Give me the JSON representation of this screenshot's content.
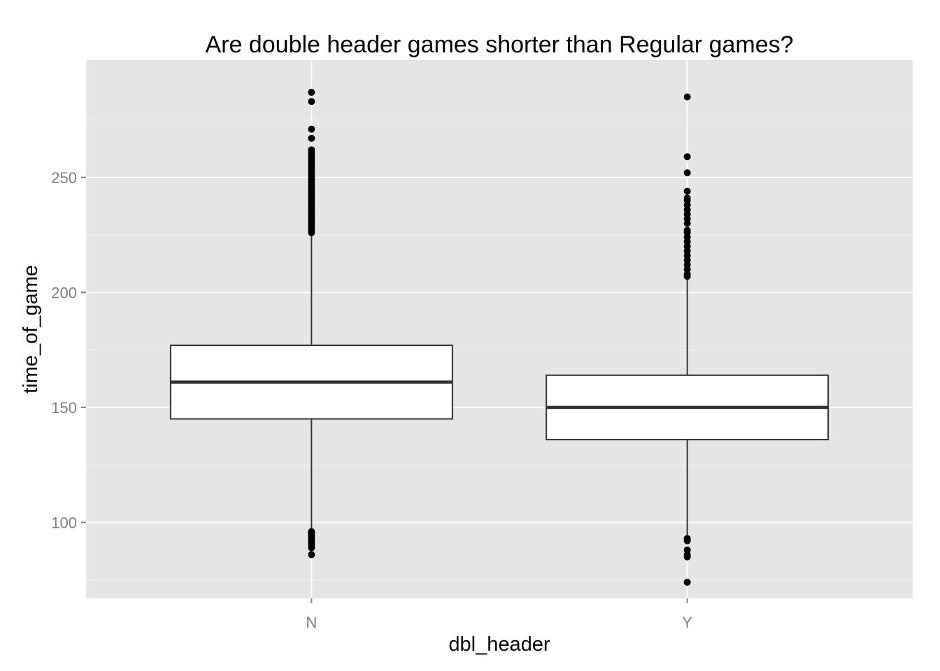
{
  "chart_data": {
    "type": "boxplot",
    "title": "Are double header games shorter than Regular games?",
    "xlabel": "dbl_header",
    "ylabel": "time_of_game",
    "categories": [
      "N",
      "Y"
    ],
    "y_ticks": [
      100,
      150,
      200,
      250
    ],
    "y_tick_labels": [
      "100",
      "150",
      "200",
      "250"
    ],
    "ylim": [
      67,
      301
    ],
    "grid": true,
    "legend": "none",
    "colors": {
      "panel_background": "#e5e5e5",
      "grid_major": "#ffffff",
      "grid_minor": "#f2f2f2",
      "box_fill": "#ffffff",
      "box_outline": "#333333",
      "median": "#333333",
      "outlier": "#000000"
    },
    "boxes": [
      {
        "category": "N",
        "q1": 145,
        "median": 161,
        "q3": 177,
        "whisker_low": 97,
        "whisker_high": 225,
        "outliers": [
          86,
          89,
          90,
          91,
          92,
          93,
          94,
          95,
          96,
          226,
          227,
          228,
          229,
          230,
          231,
          232,
          233,
          234,
          235,
          236,
          237,
          238,
          239,
          240,
          241,
          242,
          243,
          244,
          245,
          246,
          247,
          248,
          249,
          250,
          251,
          252,
          253,
          254,
          255,
          256,
          257,
          258,
          259,
          260,
          261,
          262,
          267,
          271,
          283,
          287
        ]
      },
      {
        "category": "Y",
        "q1": 136,
        "median": 150,
        "q3": 164,
        "whisker_low": 94,
        "whisker_high": 206,
        "outliers": [
          74,
          85,
          86,
          88,
          92,
          93,
          207,
          208,
          210,
          212,
          214,
          216,
          218,
          220,
          222,
          224,
          226,
          227,
          230,
          232,
          234,
          236,
          238,
          240,
          241,
          244,
          252,
          259,
          285
        ]
      }
    ]
  }
}
